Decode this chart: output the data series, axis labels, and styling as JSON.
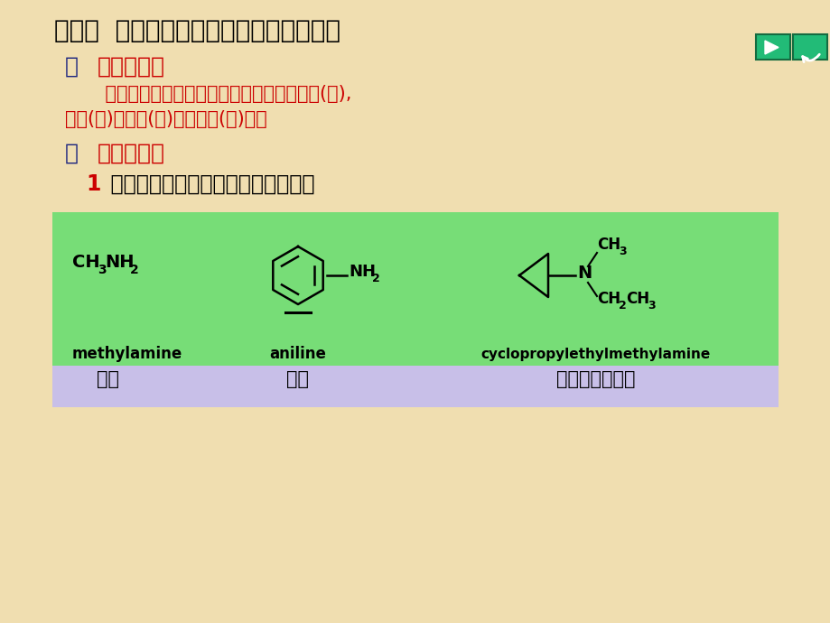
{
  "bg_color": "#f0deb0",
  "title": "第一节  胺的分类、命名、物性和光谱特征",
  "title_color": "#000000",
  "title_fontsize": 20,
  "section1_num": "一",
  "section1_text": "胺的分类：",
  "section1_color_num": "#1a237e",
  "section1_color_text": "#cc0000",
  "section1_body1": "    胺根据在氮上的取代基的数目，可分为一级(伯),",
  "section1_body2": "二级(仲)，三级(叔)胺和四级(季)铵盐",
  "section1_body_color": "#cc0000",
  "section2_num": "二",
  "section2_text": "胺的命名：",
  "section2_color_num": "#1a237e",
  "section2_color_text": "#cc0000",
  "subsection_label": "1",
  "subsection_text": " 普通命名法：可用胺为官能团，如：",
  "subsection_label_color": "#cc0000",
  "subsection_text_color": "#000000",
  "green_box_color": "#77dd77",
  "purple_box_color": "#c8bfe8",
  "compound1_name": "methylamine",
  "compound1_chinese": "甲胺",
  "compound2_name": "aniline",
  "compound2_chinese": "苯胺",
  "compound3_name": "cyclopropylethylmethylamine",
  "compound3_chinese": "甲基乙基环丙胺",
  "nav_color": "#22bb77",
  "nav_border": "#156b40"
}
